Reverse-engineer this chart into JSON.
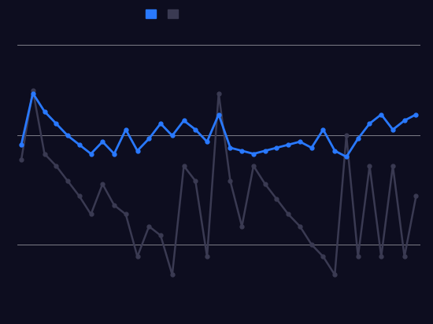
{
  "background_color": "#0d0d1f",
  "line1_color": "#2979ff",
  "line2_color": "#3a3a52",
  "grid_color": "#ffffff",
  "legend_color1": "#2979ff",
  "legend_color2": "#3a3a52",
  "blue_series": [
    6.5,
    8.2,
    7.6,
    7.2,
    6.8,
    6.5,
    6.2,
    6.6,
    6.2,
    7.0,
    6.3,
    6.7,
    7.2,
    6.8,
    7.3,
    7.0,
    6.6,
    7.5,
    6.4,
    6.3,
    6.2,
    6.3,
    6.4,
    6.5,
    6.6,
    6.4,
    7.0,
    6.3,
    6.1,
    6.7,
    7.2,
    7.5,
    7.0,
    7.3,
    7.5
  ],
  "dark_series": [
    6.0,
    8.3,
    6.2,
    5.8,
    5.3,
    4.8,
    4.2,
    5.2,
    4.5,
    4.2,
    2.8,
    3.8,
    3.5,
    2.2,
    5.8,
    5.3,
    2.8,
    8.2,
    5.3,
    3.8,
    5.8,
    5.2,
    4.7,
    4.2,
    3.8,
    3.2,
    2.8,
    2.2,
    6.8,
    2.8,
    5.8,
    2.8,
    5.8,
    2.8,
    4.8
  ],
  "ylim": [
    1.0,
    10.0
  ],
  "hlines_y": [
    3.2,
    6.8,
    9.8
  ],
  "figsize": [
    5.5,
    4.12
  ],
  "dpi": 100
}
